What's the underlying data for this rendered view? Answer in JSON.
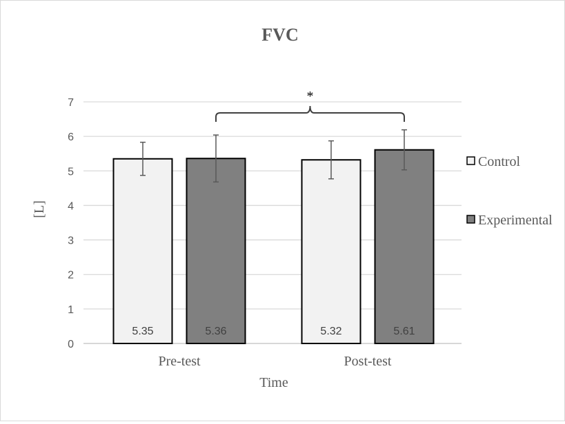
{
  "chart_data": {
    "type": "bar",
    "title": "FVC",
    "xlabel": "Time",
    "ylabel": "[L]",
    "ylim": [
      0,
      7
    ],
    "yticks": [
      0,
      1,
      2,
      3,
      4,
      5,
      6,
      7
    ],
    "grid": true,
    "legend_position": "right",
    "categories": [
      "Pre-test",
      "Post-test"
    ],
    "series": [
      {
        "name": "Control",
        "color": "#f2f2f2",
        "values": [
          5.35,
          5.32
        ],
        "labels": [
          "5.35",
          "5.32"
        ],
        "error": [
          0.48,
          0.55
        ]
      },
      {
        "name": "Experimental",
        "color": "#808080",
        "values": [
          5.36,
          5.61
        ],
        "labels": [
          "5.36",
          "5.61"
        ],
        "error": [
          0.68,
          0.58
        ]
      }
    ],
    "annotation": {
      "text": "*",
      "between": "Experimental Pre-test and Post-test"
    }
  }
}
